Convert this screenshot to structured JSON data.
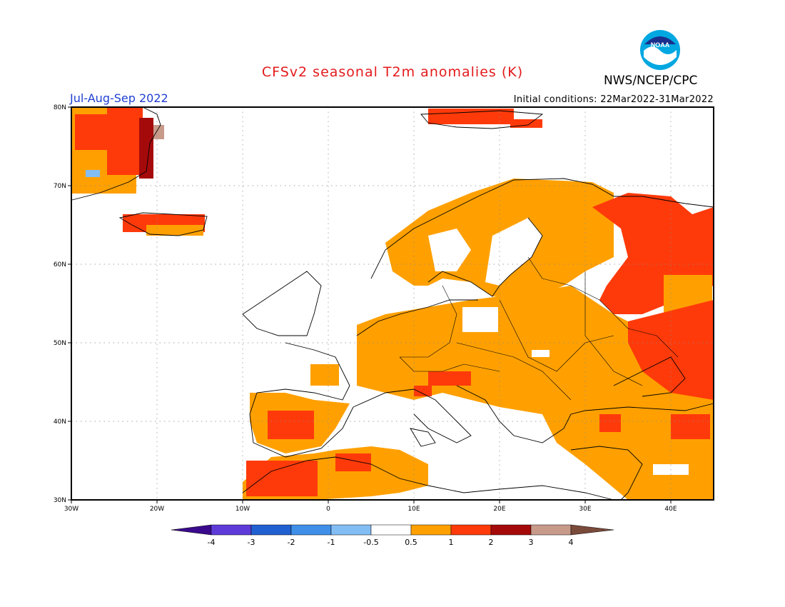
{
  "title": "CFSv2 seasonal T2m anomalies (K)",
  "agency": "NWS/NCEP/CPC",
  "period": "Jul-Aug-Sep 2022",
  "initial_conditions": "Initial conditions: 22Mar2022-31Mar2022",
  "logo_text": "NOAA",
  "axes": {
    "lat_labels": [
      "80N",
      "70N",
      "60N",
      "50N",
      "40N",
      "30N"
    ],
    "lon_labels": [
      "30W",
      "20W",
      "10W",
      "0",
      "10E",
      "20E",
      "30E",
      "40E"
    ]
  },
  "colorbar": {
    "labels": [
      "-4",
      "-3",
      "-2",
      "-1",
      "-0.5",
      "0.5",
      "1",
      "2",
      "3",
      "4"
    ],
    "colors": [
      "#3b0a8c",
      "#5e3bd9",
      "#2060d0",
      "#3f8fe8",
      "#82bdf4",
      "#ffffff",
      "#ffa000",
      "#ff3a0a",
      "#a50a0a",
      "#c89a8a",
      "#7a4a3a"
    ]
  },
  "anomaly_colors": {
    "white": "#ffffff",
    "orange": "#ffa000",
    "red": "#ff3a0a",
    "darkred": "#a50a0a",
    "tan": "#c89a8a"
  }
}
